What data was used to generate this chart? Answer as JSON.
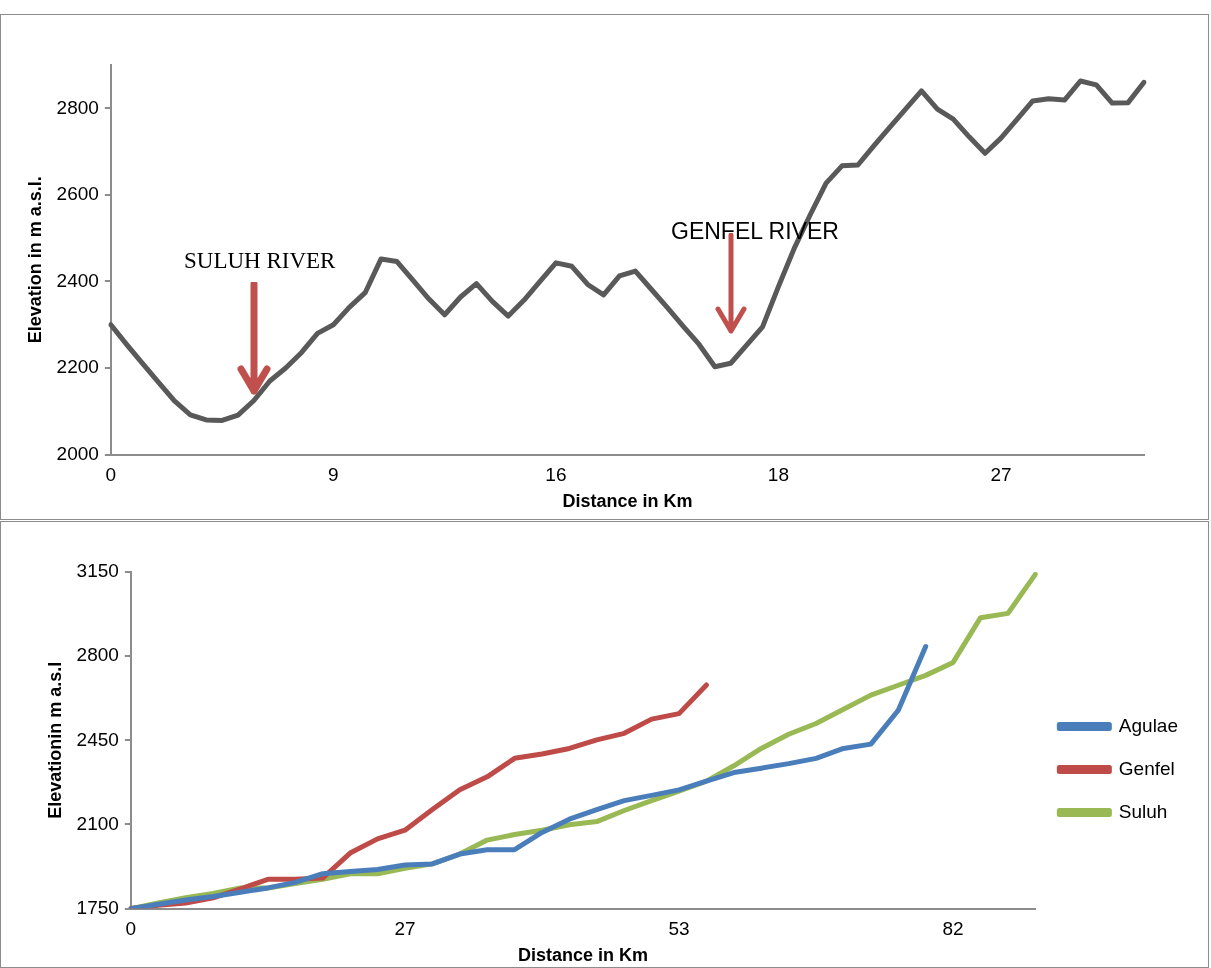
{
  "chart_data": [
    {
      "type": "line",
      "xlabel": "Distance in Km",
      "ylabel": "Elevation in m a.s.l.",
      "categories": [
        "0",
        null,
        null,
        null,
        null,
        null,
        null,
        null,
        null,
        null,
        null,
        null,
        null,
        null,
        "9",
        null,
        null,
        null,
        null,
        null,
        null,
        null,
        null,
        null,
        null,
        null,
        null,
        null,
        "16",
        null,
        null,
        null,
        null,
        null,
        null,
        null,
        null,
        null,
        null,
        null,
        null,
        null,
        "18",
        null,
        null,
        null,
        null,
        null,
        null,
        null,
        null,
        null,
        null,
        null,
        null,
        null,
        "27",
        null,
        null,
        null,
        null,
        null,
        null,
        null,
        null,
        null
      ],
      "series": [
        {
          "color": "#595959",
          "values": [
            2300,
            2254,
            2210,
            2167,
            2124,
            2092,
            2080,
            2079,
            2091,
            2125,
            2170,
            2200,
            2236,
            2280,
            2300,
            2340,
            2374,
            2452,
            2446,
            2403,
            2360,
            2323,
            2364,
            2395,
            2354,
            2320,
            2357,
            2400,
            2443,
            2435,
            2393,
            2369,
            2413,
            2424,
            2382,
            2340,
            2297,
            2255,
            2203,
            2211,
            2253,
            2295,
            2388,
            2477,
            2554,
            2627,
            2667,
            2669,
            2713,
            2756,
            2798,
            2840,
            2798,
            2775,
            2734,
            2696,
            2731,
            2774,
            2817,
            2822,
            2819,
            2863,
            2854,
            2812,
            2813,
            2860
          ]
        }
      ],
      "ylim": [
        2000,
        2900
      ],
      "yticks": [
        2000,
        2200,
        2400,
        2600,
        2800
      ],
      "grid": false,
      "legend": false,
      "annotations": [
        "SULUH RIVER",
        "GENFEL RIVER"
      ]
    },
    {
      "type": "line",
      "xlabel": "Distance in Km",
      "ylabel": "Elevationin m a.s.l",
      "categories": [
        "0",
        null,
        null,
        null,
        null,
        null,
        null,
        null,
        null,
        null,
        "27",
        null,
        null,
        null,
        null,
        null,
        null,
        null,
        null,
        null,
        "53",
        null,
        null,
        null,
        null,
        null,
        null,
        null,
        null,
        null,
        "82",
        null,
        null,
        null
      ],
      "series": [
        {
          "name": "Agulae",
          "color": "#4a7ebb",
          "values": [
            1750,
            1768,
            1786,
            1800,
            1818,
            1836,
            1859,
            1895,
            1904,
            1913,
            1931,
            1936,
            1977,
            1995,
            1995,
            2067,
            2122,
            2162,
            2199,
            2221,
            2244,
            2280,
            2316,
            2334,
            2353,
            2375,
            2416,
            2434,
            2575,
            2840,
            null,
            null,
            null,
            null
          ]
        },
        {
          "name": "Genfel",
          "color": "#be4b48",
          "values": [
            1750,
            1764,
            1773,
            1795,
            1832,
            1872,
            1872,
            1877,
            1981,
            2040,
            2076,
            2162,
            2244,
            2298,
            2375,
            2393,
            2416,
            2452,
            2479,
            2538,
            2561,
            2680,
            null,
            null,
            null,
            null,
            null,
            null,
            null,
            null,
            null,
            null,
            null,
            null
          ]
        },
        {
          "name": "Suluh",
          "color": "#98b954",
          "values": [
            1750,
            1773,
            1795,
            1813,
            1836,
            1836,
            1854,
            1872,
            1895,
            1895,
            1918,
            1936,
            1977,
            2035,
            2058,
            2076,
            2099,
            2112,
            2158,
            2199,
            2239,
            2280,
            2344,
            2416,
            2475,
            2520,
            2579,
            2638,
            2679,
            2720,
            2774,
            2960,
            2978,
            3140
          ]
        }
      ],
      "ylim": [
        1750,
        3150
      ],
      "yticks": [
        1750,
        2100,
        2450,
        2800,
        3150
      ],
      "grid": false,
      "legend": "right"
    }
  ]
}
